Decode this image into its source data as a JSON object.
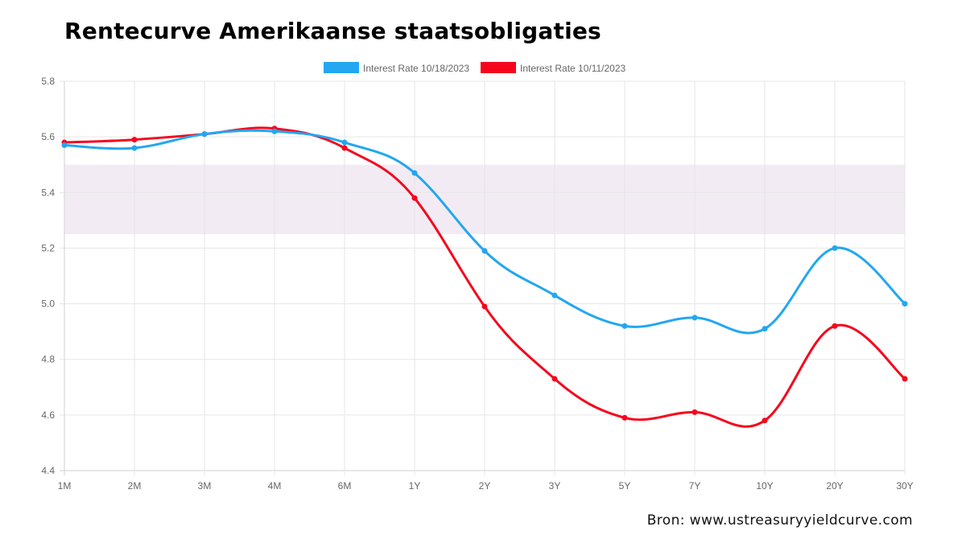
{
  "title": "Rentecurve Amerikaanse staatsobligaties",
  "source": "Bron: www.ustreasuryyieldcurve.com",
  "chart_data": {
    "type": "line",
    "title": "Rentecurve Amerikaanse staatsobligaties",
    "xlabel": "",
    "ylabel": "",
    "categories": [
      "1M",
      "2M",
      "3M",
      "4M",
      "6M",
      "1Y",
      "2Y",
      "3Y",
      "5Y",
      "7Y",
      "10Y",
      "20Y",
      "30Y"
    ],
    "ylim": [
      4.4,
      5.8
    ],
    "yticks": [
      "4.4",
      "4.6",
      "4.8",
      "5.0",
      "5.2",
      "5.4",
      "5.6",
      "5.8"
    ],
    "grid": true,
    "legend_position": "top-center",
    "highlight_band": {
      "from": 5.25,
      "to": 5.5,
      "color": "#f3ebf3"
    },
    "series": [
      {
        "name": "Interest Rate 10/18/2023",
        "color": "#22a7f0",
        "values": [
          5.57,
          5.56,
          5.61,
          5.62,
          5.58,
          5.47,
          5.19,
          5.03,
          4.92,
          4.95,
          4.91,
          5.2,
          5.0
        ]
      },
      {
        "name": "Interest Rate 10/11/2023",
        "color": "#f5061d",
        "values": [
          5.58,
          5.59,
          5.61,
          5.63,
          5.56,
          5.38,
          4.99,
          4.73,
          4.59,
          4.61,
          4.58,
          4.92,
          4.73
        ]
      }
    ]
  }
}
